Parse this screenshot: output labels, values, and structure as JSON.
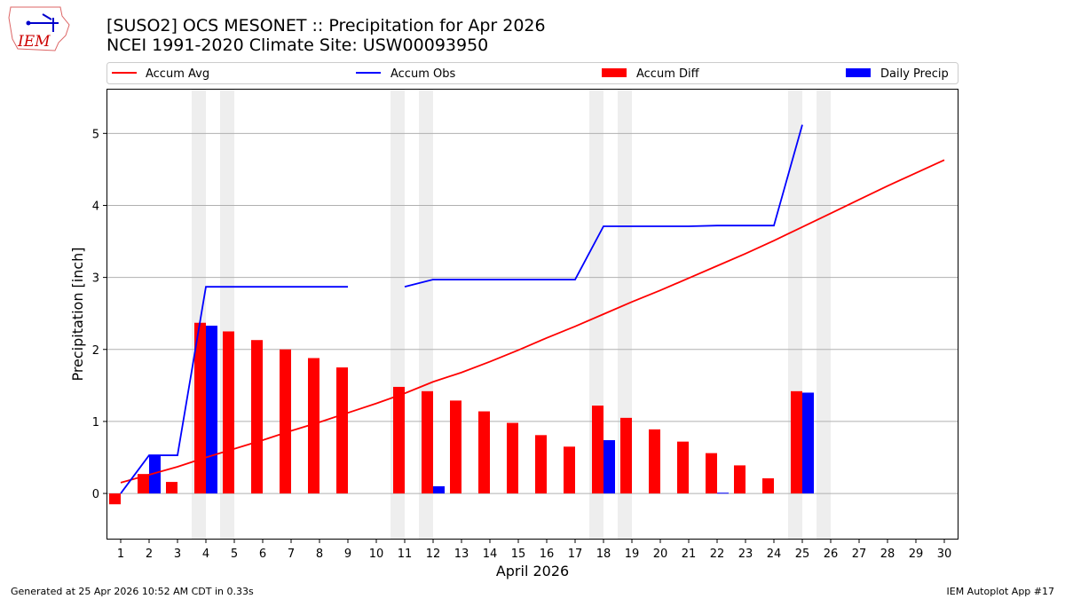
{
  "logo": {
    "text": "IEM"
  },
  "title_line1": "[SUSO2] OCS MESONET :: Precipitation for Apr 2026",
  "title_line2": "NCEI 1991-2020 Climate Site: USW00093950",
  "footer_left": "Generated at 25 Apr 2026 10:52 AM CDT in 0.33s",
  "footer_right": "IEM Autoplot App #17",
  "chart_data": {
    "type": "bar+line",
    "xlabel": "April 2026",
    "ylabel": "Precipitation [inch]",
    "xlim": [
      0.5,
      30.5
    ],
    "ylim": [
      -0.64,
      5.62
    ],
    "yticks": [
      0,
      1,
      2,
      3,
      4,
      5
    ],
    "grid": "horizontal",
    "legend": "top",
    "weekend_shading_days": [
      4,
      5,
      11,
      12,
      18,
      19,
      25,
      26
    ],
    "days": [
      1,
      2,
      3,
      4,
      5,
      6,
      7,
      8,
      9,
      10,
      11,
      12,
      13,
      14,
      15,
      16,
      17,
      18,
      19,
      20,
      21,
      22,
      23,
      24,
      25,
      26,
      27,
      28,
      29,
      30
    ],
    "series": [
      {
        "name": "Accum Avg",
        "kind": "line",
        "color": "#ff0000",
        "values": [
          0.15,
          0.26,
          0.37,
          0.5,
          0.62,
          0.74,
          0.87,
          0.99,
          1.12,
          1.25,
          1.39,
          1.55,
          1.68,
          1.83,
          1.99,
          2.16,
          2.32,
          2.49,
          2.66,
          2.82,
          2.99,
          3.16,
          3.33,
          3.51,
          3.7,
          3.89,
          4.08,
          4.27,
          4.45,
          4.63
        ]
      },
      {
        "name": "Accum Obs",
        "kind": "line",
        "color": "#0000ff",
        "values": [
          0.0,
          0.53,
          0.53,
          2.87,
          2.87,
          2.87,
          2.87,
          2.87,
          2.87,
          null,
          2.87,
          2.97,
          2.97,
          2.97,
          2.97,
          2.97,
          2.97,
          3.71,
          3.71,
          3.71,
          3.71,
          3.72,
          3.72,
          3.72,
          5.12,
          null,
          null,
          null,
          null,
          null
        ]
      },
      {
        "name": "Accum Diff",
        "kind": "bar",
        "color": "#ff0000",
        "values": [
          -0.15,
          0.27,
          0.16,
          2.37,
          2.25,
          2.13,
          2.0,
          1.88,
          1.75,
          null,
          1.48,
          1.42,
          1.29,
          1.14,
          0.98,
          0.81,
          0.65,
          1.22,
          1.05,
          0.89,
          0.72,
          0.56,
          0.39,
          0.21,
          1.42,
          null,
          null,
          null,
          null,
          null
        ]
      },
      {
        "name": "Daily Precip",
        "kind": "bar",
        "color": "#0000ff",
        "values": [
          0,
          0.53,
          0,
          2.33,
          0,
          0,
          0,
          0,
          0,
          null,
          0,
          0.1,
          0,
          0,
          0,
          0,
          0,
          0.74,
          0,
          0,
          0,
          0.01,
          0,
          0,
          1.4,
          null,
          null,
          null,
          null,
          null
        ]
      }
    ]
  }
}
